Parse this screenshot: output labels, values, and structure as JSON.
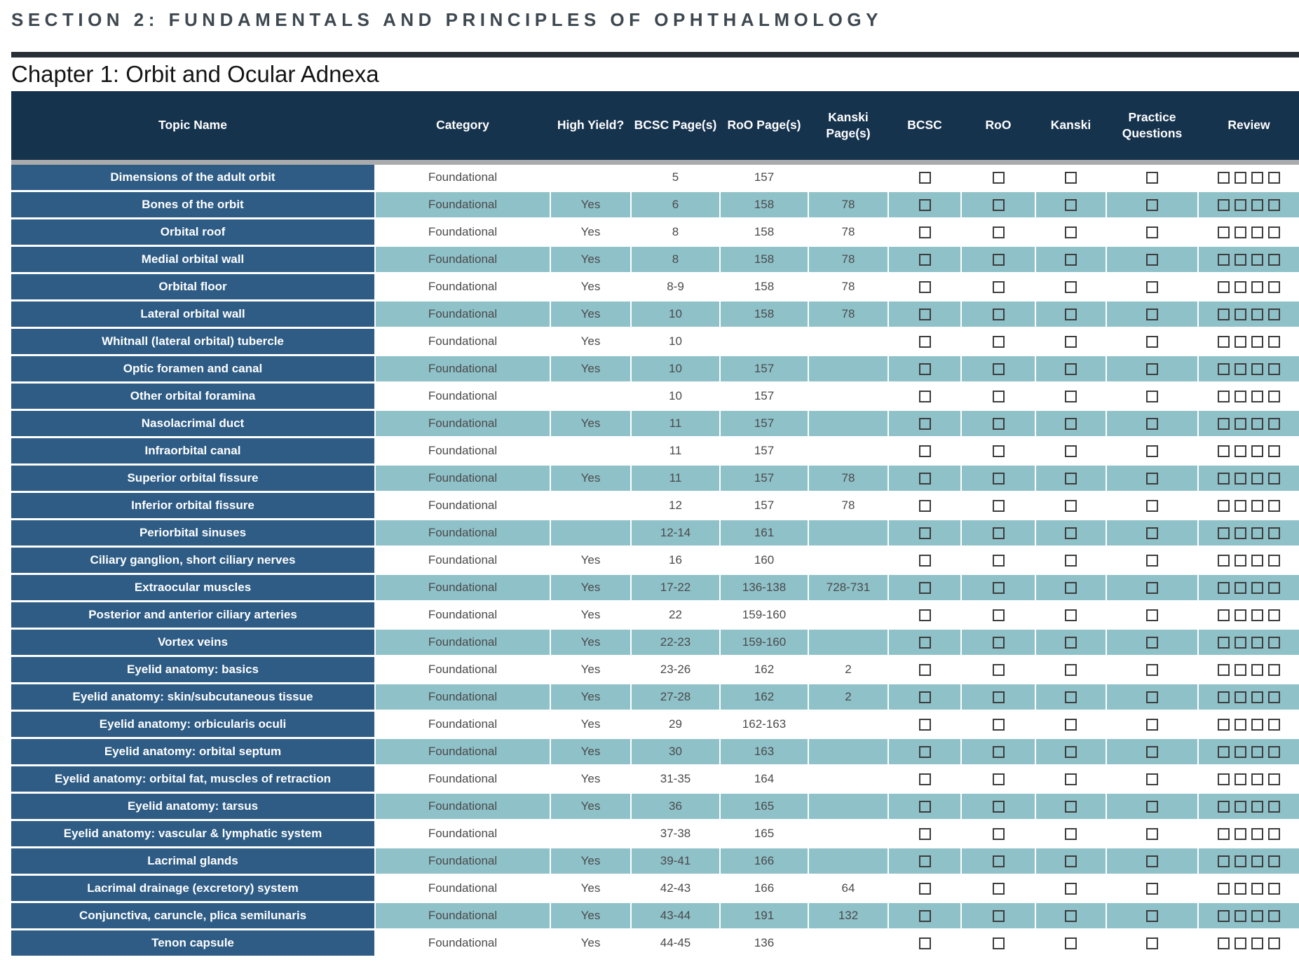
{
  "section_title": "SECTION 2: FUNDAMENTALS AND PRINCIPLES OF OPHTHALMOLOGY",
  "chapter_title": "Chapter 1: Orbit and Ocular Adnexa",
  "colors": {
    "header_navy": "#16334E",
    "topic_column_blue": "#2E5C85",
    "alt_row_teal": "#8FC1C9",
    "separator_gray": "#A9ABAD",
    "rule_dark": "#272F37",
    "body_text_gray": "#4A4A4A",
    "checkbox_border": "#3D3D3D",
    "section_title_color": "#3E4850"
  },
  "table": {
    "columns": [
      "Topic Name",
      "Category",
      "High Yield?",
      "BCSC Page(s)",
      "RoO Page(s)",
      "Kanski Page(s)",
      "BCSC",
      "RoO",
      "Kanski",
      "Practice Questions",
      "Review"
    ],
    "checkbox_columns": [
      "BCSC",
      "RoO",
      "Kanski",
      "Practice Questions"
    ],
    "review_checkbox_count": 4,
    "all_checkboxes_state": "unchecked",
    "rows": [
      {
        "topic": "Dimensions of the adult orbit",
        "category": "Foundational",
        "high_yield": "",
        "bcsc_pages": "5",
        "roo_pages": "157",
        "kanski_pages": ""
      },
      {
        "topic": "Bones of the orbit",
        "category": "Foundational",
        "high_yield": "Yes",
        "bcsc_pages": "6",
        "roo_pages": "158",
        "kanski_pages": "78"
      },
      {
        "topic": "Orbital roof",
        "category": "Foundational",
        "high_yield": "Yes",
        "bcsc_pages": "8",
        "roo_pages": "158",
        "kanski_pages": "78"
      },
      {
        "topic": "Medial orbital wall",
        "category": "Foundational",
        "high_yield": "Yes",
        "bcsc_pages": "8",
        "roo_pages": "158",
        "kanski_pages": "78"
      },
      {
        "topic": "Orbital floor",
        "category": "Foundational",
        "high_yield": "Yes",
        "bcsc_pages": "8-9",
        "roo_pages": "158",
        "kanski_pages": "78"
      },
      {
        "topic": "Lateral orbital wall",
        "category": "Foundational",
        "high_yield": "Yes",
        "bcsc_pages": "10",
        "roo_pages": "158",
        "kanski_pages": "78"
      },
      {
        "topic": "Whitnall (lateral orbital) tubercle",
        "category": "Foundational",
        "high_yield": "Yes",
        "bcsc_pages": "10",
        "roo_pages": "",
        "kanski_pages": ""
      },
      {
        "topic": "Optic foramen and canal",
        "category": "Foundational",
        "high_yield": "Yes",
        "bcsc_pages": "10",
        "roo_pages": "157",
        "kanski_pages": ""
      },
      {
        "topic": "Other orbital foramina",
        "category": "Foundational",
        "high_yield": "",
        "bcsc_pages": "10",
        "roo_pages": "157",
        "kanski_pages": ""
      },
      {
        "topic": "Nasolacrimal duct",
        "category": "Foundational",
        "high_yield": "Yes",
        "bcsc_pages": "11",
        "roo_pages": "157",
        "kanski_pages": ""
      },
      {
        "topic": "Infraorbital canal",
        "category": "Foundational",
        "high_yield": "",
        "bcsc_pages": "11",
        "roo_pages": "157",
        "kanski_pages": ""
      },
      {
        "topic": "Superior orbital fissure",
        "category": "Foundational",
        "high_yield": "Yes",
        "bcsc_pages": "11",
        "roo_pages": "157",
        "kanski_pages": "78"
      },
      {
        "topic": "Inferior orbital fissure",
        "category": "Foundational",
        "high_yield": "",
        "bcsc_pages": "12",
        "roo_pages": "157",
        "kanski_pages": "78"
      },
      {
        "topic": "Periorbital sinuses",
        "category": "Foundational",
        "high_yield": "",
        "bcsc_pages": "12-14",
        "roo_pages": "161",
        "kanski_pages": ""
      },
      {
        "topic": "Ciliary ganglion, short ciliary nerves",
        "category": "Foundational",
        "high_yield": "Yes",
        "bcsc_pages": "16",
        "roo_pages": "160",
        "kanski_pages": ""
      },
      {
        "topic": "Extraocular muscles",
        "category": "Foundational",
        "high_yield": "Yes",
        "bcsc_pages": "17-22",
        "roo_pages": "136-138",
        "kanski_pages": "728-731"
      },
      {
        "topic": "Posterior and anterior ciliary arteries",
        "category": "Foundational",
        "high_yield": "Yes",
        "bcsc_pages": "22",
        "roo_pages": "159-160",
        "kanski_pages": ""
      },
      {
        "topic": "Vortex veins",
        "category": "Foundational",
        "high_yield": "Yes",
        "bcsc_pages": "22-23",
        "roo_pages": "159-160",
        "kanski_pages": ""
      },
      {
        "topic": "Eyelid anatomy: basics",
        "category": "Foundational",
        "high_yield": "Yes",
        "bcsc_pages": "23-26",
        "roo_pages": "162",
        "kanski_pages": "2"
      },
      {
        "topic": "Eyelid anatomy: skin/subcutaneous tissue",
        "category": "Foundational",
        "high_yield": "Yes",
        "bcsc_pages": "27-28",
        "roo_pages": "162",
        "kanski_pages": "2"
      },
      {
        "topic": "Eyelid anatomy: orbicularis oculi",
        "category": "Foundational",
        "high_yield": "Yes",
        "bcsc_pages": "29",
        "roo_pages": "162-163",
        "kanski_pages": ""
      },
      {
        "topic": "Eyelid anatomy: orbital septum",
        "category": "Foundational",
        "high_yield": "Yes",
        "bcsc_pages": "30",
        "roo_pages": "163",
        "kanski_pages": ""
      },
      {
        "topic": "Eyelid anatomy: orbital fat, muscles of retraction",
        "category": "Foundational",
        "high_yield": "Yes",
        "bcsc_pages": "31-35",
        "roo_pages": "164",
        "kanski_pages": ""
      },
      {
        "topic": "Eyelid anatomy: tarsus",
        "category": "Foundational",
        "high_yield": "Yes",
        "bcsc_pages": "36",
        "roo_pages": "165",
        "kanski_pages": ""
      },
      {
        "topic": "Eyelid anatomy: vascular & lymphatic system",
        "category": "Foundational",
        "high_yield": "",
        "bcsc_pages": "37-38",
        "roo_pages": "165",
        "kanski_pages": ""
      },
      {
        "topic": "Lacrimal glands",
        "category": "Foundational",
        "high_yield": "Yes",
        "bcsc_pages": "39-41",
        "roo_pages": "166",
        "kanski_pages": ""
      },
      {
        "topic": "Lacrimal drainage (excretory) system",
        "category": "Foundational",
        "high_yield": "Yes",
        "bcsc_pages": "42-43",
        "roo_pages": "166",
        "kanski_pages": "64"
      },
      {
        "topic": "Conjunctiva, caruncle, plica semilunaris",
        "category": "Foundational",
        "high_yield": "Yes",
        "bcsc_pages": "43-44",
        "roo_pages": "191",
        "kanski_pages": "132"
      },
      {
        "topic": "Tenon capsule",
        "category": "Foundational",
        "high_yield": "Yes",
        "bcsc_pages": "44-45",
        "roo_pages": "136",
        "kanski_pages": ""
      }
    ]
  }
}
